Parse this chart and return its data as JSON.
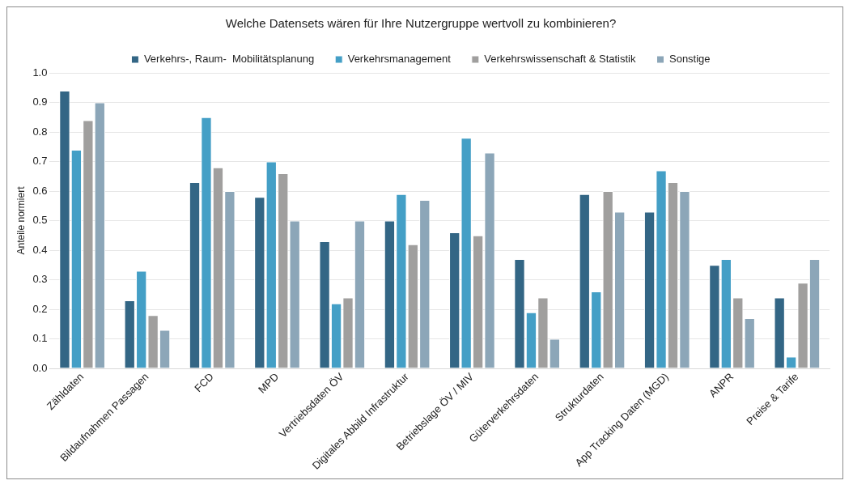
{
  "chart_data": {
    "type": "bar",
    "title": "Welche Datensets wären für Ihre Nutzergruppe wertvoll zu kombinieren?",
    "ylabel": "Anteile normiert",
    "categories": [
      "Zähldaten",
      "Bildaufnahmen Passagen",
      "FCD",
      "MPD",
      "Vertriebsdaten ÖV",
      "Digitales Abbild Infrastruktur",
      "Betriebslage ÖV / MIV",
      "Güterverkehrsdaten",
      "Strukturdaten",
      "App Tracking Daten (MGD)",
      "ANPR",
      "Preise & Tarife"
    ],
    "series": [
      {
        "name": "Verkehrs-, Raum-  Mobilitätsplanung",
        "color": "#336685",
        "values": [
          0.94,
          0.23,
          0.63,
          0.58,
          0.43,
          0.5,
          0.46,
          0.37,
          0.59,
          0.53,
          0.35,
          0.24
        ]
      },
      {
        "name": "Verkehrsmanagement",
        "color": "#449fc6",
        "values": [
          0.74,
          0.33,
          0.85,
          0.7,
          0.22,
          0.59,
          0.78,
          0.19,
          0.26,
          0.67,
          0.37,
          0.04
        ]
      },
      {
        "name": "Verkehrswissenschaft & Statistik",
        "color": "#a09f9e",
        "values": [
          0.84,
          0.18,
          0.68,
          0.66,
          0.24,
          0.42,
          0.45,
          0.24,
          0.6,
          0.63,
          0.24,
          0.29
        ]
      },
      {
        "name": "Sonstige",
        "color": "#8ca6b8",
        "values": [
          0.9,
          0.13,
          0.6,
          0.5,
          0.5,
          0.57,
          0.73,
          0.1,
          0.53,
          0.6,
          0.17,
          0.37
        ]
      }
    ],
    "ylim": [
      0,
      1
    ],
    "yticks": [
      {
        "value": 0,
        "label": "0.0"
      },
      {
        "value": 0.1,
        "label": "0.1"
      },
      {
        "value": 0.2,
        "label": "0.2"
      },
      {
        "value": 0.3,
        "label": "0.3"
      },
      {
        "value": 0.4,
        "label": "0.4"
      },
      {
        "value": 0.5,
        "label": "0.5"
      },
      {
        "value": 0.6,
        "label": "0.6"
      },
      {
        "value": 0.7,
        "label": "0.7"
      },
      {
        "value": 0.8,
        "label": "0.8"
      },
      {
        "value": 0.9,
        "label": "0.9"
      },
      {
        "value": 1,
        "label": "1.0"
      }
    ],
    "grid": "y",
    "legend": "top"
  }
}
